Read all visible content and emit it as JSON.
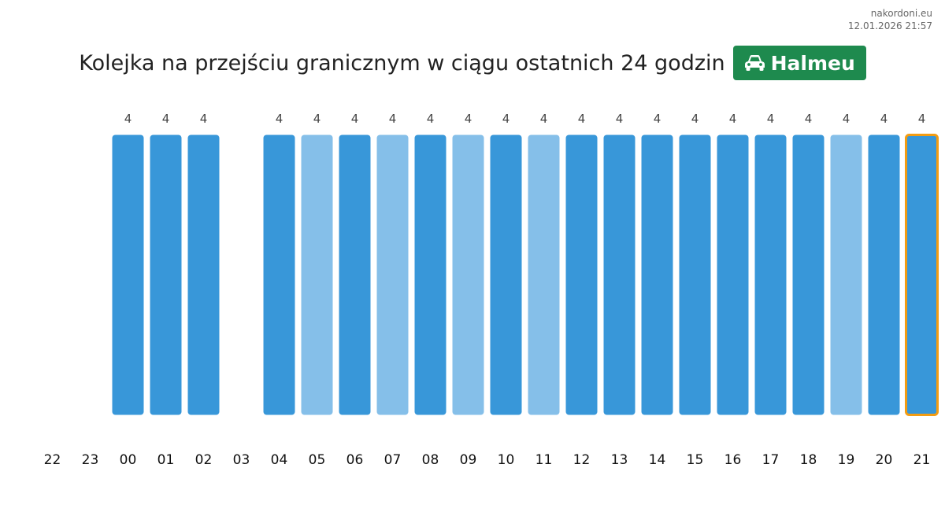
{
  "site": {
    "name": "nakordoni.eu",
    "timestamp": "12.01.2026 21:57"
  },
  "header": {
    "title": "Kolejka na przejściu granicznym w ciągu ostatnich 24 godzin",
    "crossing": "Halmeu",
    "crossing_icon": "car-icon"
  },
  "colors": {
    "bar_dark": "#3897d9",
    "bar_light": "#85bfe9",
    "highlight_border": "#f39c12",
    "badge": "#1e8a4e"
  },
  "chart_data": {
    "type": "bar",
    "title": "Kolejka na przejściu granicznym w ciągu ostatnich 24 godzin",
    "categories": [
      "22",
      "23",
      "00",
      "01",
      "02",
      "03",
      "04",
      "05",
      "06",
      "07",
      "08",
      "09",
      "10",
      "11",
      "12",
      "13",
      "14",
      "15",
      "16",
      "17",
      "18",
      "19",
      "20",
      "21"
    ],
    "values": [
      null,
      null,
      4,
      4,
      4,
      null,
      4,
      4,
      4,
      4,
      4,
      4,
      4,
      4,
      4,
      4,
      4,
      4,
      4,
      4,
      4,
      4,
      4,
      4
    ],
    "shade": [
      null,
      null,
      "dark",
      "dark",
      "dark",
      null,
      "dark",
      "light",
      "dark",
      "light",
      "dark",
      "light",
      "dark",
      "light",
      "dark",
      "dark",
      "dark",
      "dark",
      "dark",
      "dark",
      "dark",
      "light",
      "dark",
      "dark"
    ],
    "highlighted_category": "21",
    "ylim": [
      0,
      4
    ],
    "grid": false,
    "legend": "none"
  }
}
